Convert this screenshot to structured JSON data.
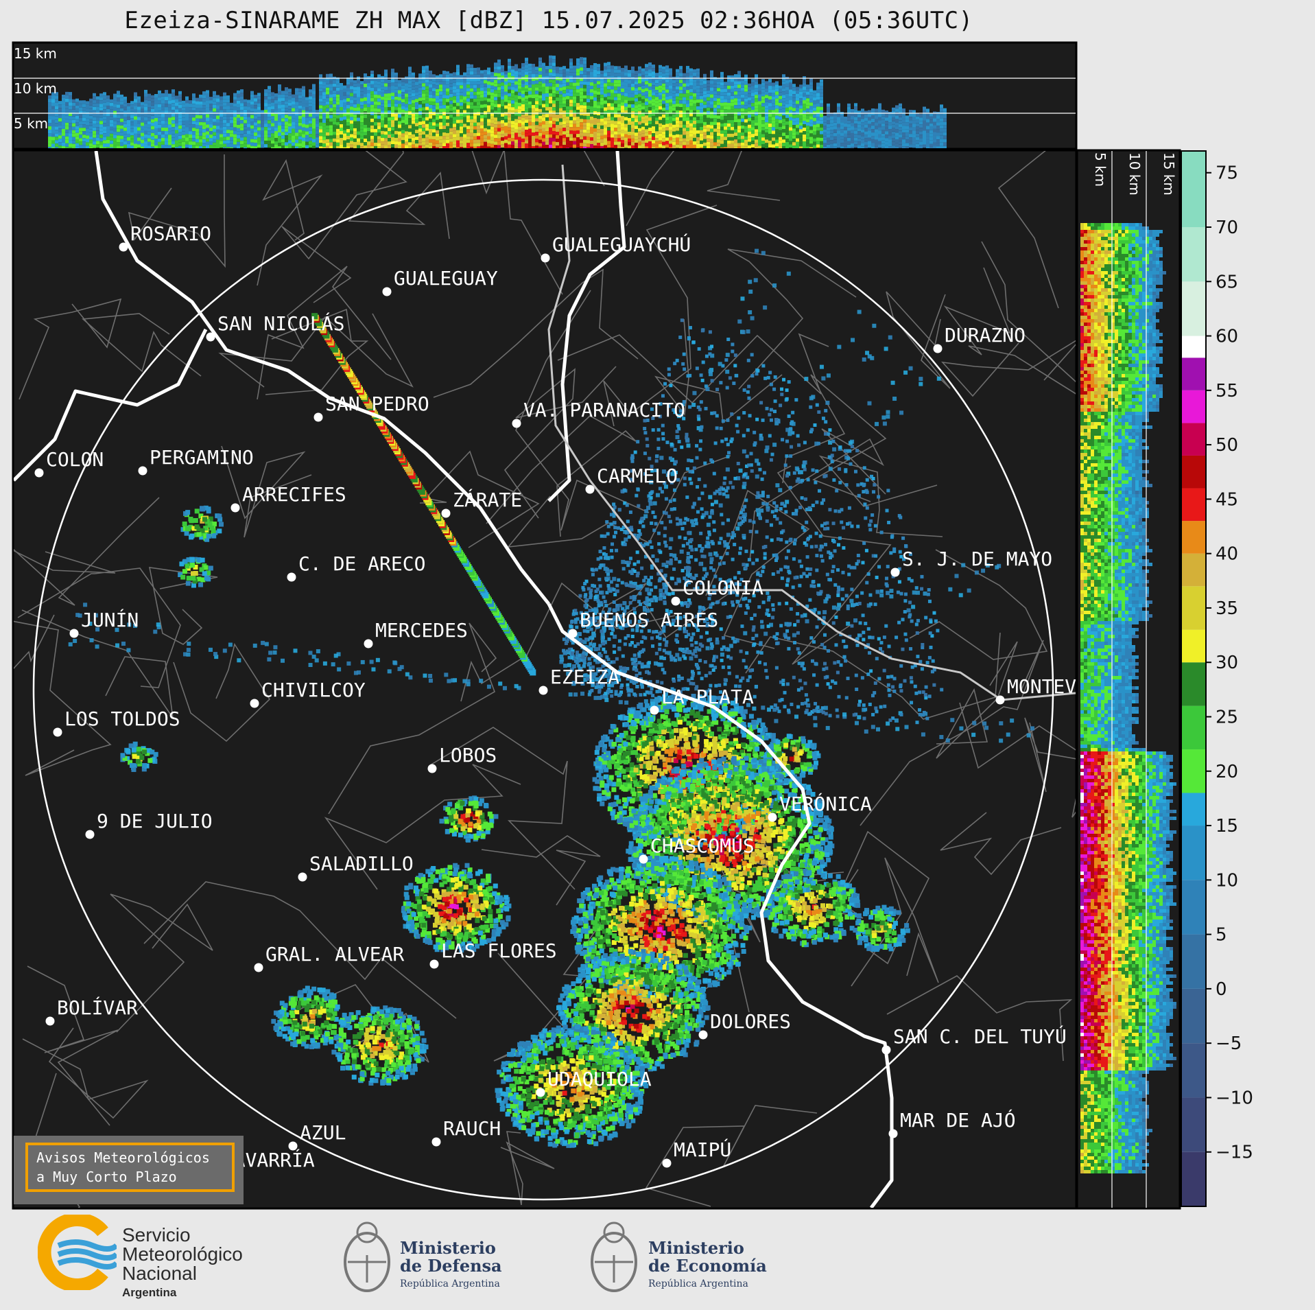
{
  "title": "Ezeiza-SINARAME ZH MAX [dBZ] 15.07.2025 02:36HOA (05:36UTC)",
  "height_labels_top": [
    "15 km",
    "10 km",
    "5 km"
  ],
  "height_labels_side": [
    "5 km",
    "10 km",
    "15 km"
  ],
  "colorbar": {
    "ticks": [
      "75",
      "70",
      "65",
      "60",
      "55",
      "50",
      "45",
      "40",
      "35",
      "30",
      "25",
      "20",
      "15",
      "10",
      "5",
      "0",
      "−5",
      "−10",
      "−15"
    ],
    "range": [
      -20,
      77
    ],
    "stops": [
      {
        "from": -20,
        "to": -15,
        "color": "#3a3a6a"
      },
      {
        "from": -15,
        "to": -10,
        "color": "#3d4a7a"
      },
      {
        "from": -10,
        "to": -5,
        "color": "#3d5888"
      },
      {
        "from": -5,
        "to": 0,
        "color": "#3a6494"
      },
      {
        "from": 0,
        "to": 5,
        "color": "#3572a4"
      },
      {
        "from": 5,
        "to": 10,
        "color": "#2f82b8"
      },
      {
        "from": 10,
        "to": 15,
        "color": "#2a92c8"
      },
      {
        "from": 15,
        "to": 18,
        "color": "#28a8dc"
      },
      {
        "from": 18,
        "to": 22,
        "color": "#55e838"
      },
      {
        "from": 22,
        "to": 26,
        "color": "#3cc83a"
      },
      {
        "from": 26,
        "to": 30,
        "color": "#2a8a2a"
      },
      {
        "from": 30,
        "to": 33,
        "color": "#f0f028"
      },
      {
        "from": 33,
        "to": 37,
        "color": "#d8d030"
      },
      {
        "from": 37,
        "to": 40,
        "color": "#d4b038"
      },
      {
        "from": 40,
        "to": 43,
        "color": "#e88a18"
      },
      {
        "from": 43,
        "to": 46,
        "color": "#e81818"
      },
      {
        "from": 46,
        "to": 49,
        "color": "#b80808"
      },
      {
        "from": 49,
        "to": 52,
        "color": "#c80050"
      },
      {
        "from": 52,
        "to": 55,
        "color": "#e818d8"
      },
      {
        "from": 55,
        "to": 58,
        "color": "#a010b0"
      },
      {
        "from": 58,
        "to": 60,
        "color": "#ffffff"
      },
      {
        "from": 60,
        "to": 65,
        "color": "#d8f0e0"
      },
      {
        "from": 65,
        "to": 70,
        "color": "#b0e8d0"
      },
      {
        "from": 70,
        "to": 77,
        "color": "#88dcc0"
      }
    ]
  },
  "cities": [
    {
      "name": "ROSARIO"
    },
    {
      "name": "GUALEGUAYCHÚ"
    },
    {
      "name": "GUALEGUAY"
    },
    {
      "name": "SAN NICOLÁS"
    },
    {
      "name": "DURAZNO"
    },
    {
      "name": "SAN PEDRO"
    },
    {
      "name": "VA. PARANACITO"
    },
    {
      "name": "COLON"
    },
    {
      "name": "PERGAMINO"
    },
    {
      "name": "CARMELO"
    },
    {
      "name": "ARRECIFES"
    },
    {
      "name": "ZÁRATE"
    },
    {
      "name": "S. J. DE MAYO"
    },
    {
      "name": "C. DE ARECO"
    },
    {
      "name": "COLONIA"
    },
    {
      "name": "JUNÍN"
    },
    {
      "name": "BUENOS AIRES"
    },
    {
      "name": "MERCEDES"
    },
    {
      "name": "EZEIZA"
    },
    {
      "name": "MONTEVIDEO"
    },
    {
      "name": "CHIVILCOY"
    },
    {
      "name": "LA PLATA"
    },
    {
      "name": "LOS TOLDOS"
    },
    {
      "name": "LOBOS"
    },
    {
      "name": "VERÓNICA"
    },
    {
      "name": "9 DE JULIO"
    },
    {
      "name": "CHASCOMÚS"
    },
    {
      "name": "SALADILLO"
    },
    {
      "name": "GRAL. ALVEAR"
    },
    {
      "name": "LAS FLORES"
    },
    {
      "name": "BOLÍVAR"
    },
    {
      "name": "DOLORES"
    },
    {
      "name": "SAN C. DEL TUYÚ"
    },
    {
      "name": "UDAQUIOLA"
    },
    {
      "name": "MAR DE AJÓ"
    },
    {
      "name": "AZUL"
    },
    {
      "name": "RAUCH"
    },
    {
      "name": "OLAVARRÍA"
    },
    {
      "name": "MAIPÚ"
    }
  ],
  "warning": {
    "line1": "Avisos Meteorológicos",
    "line2": "a Muy Corto Plazo",
    "accent": "#f0a000"
  },
  "logos": {
    "smn": {
      "line1": "Servicio",
      "line2": "Meteorológico",
      "line3": "Nacional",
      "line4": "Argentina"
    },
    "defensa": {
      "line1": "Ministerio",
      "line2": "de Defensa",
      "line3": "República Argentina"
    },
    "economia": {
      "line1": "Ministerio",
      "line2": "de Economía",
      "line3": "República Argentina"
    }
  }
}
